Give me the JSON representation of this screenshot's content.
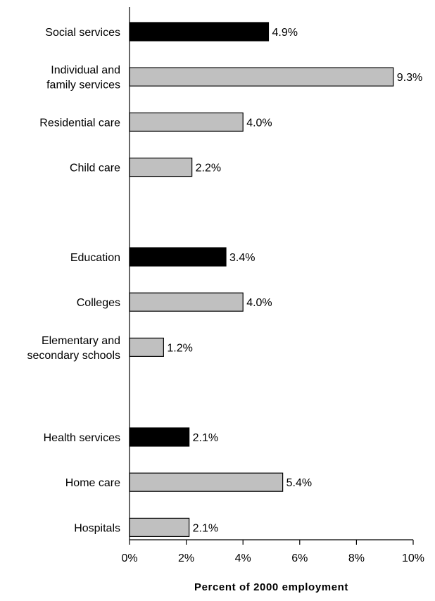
{
  "chart_data": {
    "type": "bar",
    "orientation": "horizontal",
    "title": "",
    "xlabel": "Percent of 2000 employment",
    "ylabel": "",
    "xlim": [
      0,
      10
    ],
    "x_ticks": [
      0,
      2,
      4,
      6,
      8,
      10
    ],
    "x_tick_labels": [
      "0%",
      "2%",
      "4%",
      "6%",
      "8%",
      "10%"
    ],
    "grid": false,
    "legend": "none",
    "colors": {
      "group_total": "#000000",
      "subcategory": "#c0c0c0",
      "bar_border": "#000000"
    },
    "groups": [
      {
        "name": "Social services",
        "bars": [
          {
            "label": "Social services",
            "value": 4.9,
            "value_label": "4.9%",
            "kind": "group_total"
          },
          {
            "label": "Individual and\nfamily services",
            "value": 9.3,
            "value_label": "9.3%",
            "kind": "subcategory"
          },
          {
            "label": "Residential care",
            "value": 4.0,
            "value_label": "4.0%",
            "kind": "subcategory"
          },
          {
            "label": "Child care",
            "value": 2.2,
            "value_label": "2.2%",
            "kind": "subcategory"
          }
        ]
      },
      {
        "name": "Education",
        "bars": [
          {
            "label": "Education",
            "value": 3.4,
            "value_label": "3.4%",
            "kind": "group_total"
          },
          {
            "label": "Colleges",
            "value": 4.0,
            "value_label": "4.0%",
            "kind": "subcategory"
          },
          {
            "label": "Elementary and\nsecondary schools",
            "value": 1.2,
            "value_label": "1.2%",
            "kind": "subcategory"
          }
        ]
      },
      {
        "name": "Health services",
        "bars": [
          {
            "label": "Health services",
            "value": 2.1,
            "value_label": "2.1%",
            "kind": "group_total"
          },
          {
            "label": "Home care",
            "value": 5.4,
            "value_label": "5.4%",
            "kind": "subcategory"
          },
          {
            "label": "Hospitals",
            "value": 2.1,
            "value_label": "2.1%",
            "kind": "subcategory"
          }
        ]
      }
    ]
  }
}
